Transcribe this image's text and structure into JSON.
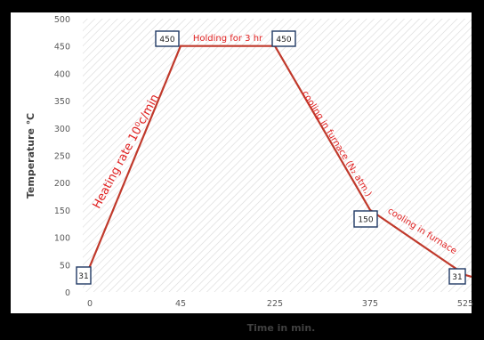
{
  "chart_data": {
    "type": "line",
    "title": "",
    "xlabel": "Time in min.",
    "ylabel": "Temperature ℃",
    "ylim": [
      0,
      500
    ],
    "y_ticks": [
      "0",
      "50",
      "100",
      "150",
      "200",
      "250",
      "300",
      "350",
      "400",
      "450",
      "500"
    ],
    "x_tick_labels": [
      "0",
      "45",
      "225",
      "375",
      "525"
    ],
    "grid": false,
    "background_pattern": "diagonal-hatch",
    "series": [
      {
        "color": "#c0392b",
        "points": [
          {
            "t": "0",
            "y": 31
          },
          {
            "t": "45",
            "y": 450
          },
          {
            "t": "225",
            "y": 450
          },
          {
            "t": "375",
            "y": 150
          },
          {
            "t": "525",
            "y": 31
          }
        ]
      }
    ],
    "point_labels": [
      "31",
      "450",
      "450",
      "150",
      "31"
    ],
    "annotations": [
      {
        "text": "Heating rate 10⁰c/min",
        "color": "#e02020"
      },
      {
        "text": "Holding for 3 hr",
        "color": "#e02020"
      },
      {
        "text": "cooling in furnace (N₂ atm.)",
        "color": "#e02020"
      },
      {
        "text": "cooling in furnace",
        "color": "#e02020"
      }
    ],
    "colors": {
      "frame": "#000000",
      "plot_background": "#ffffff",
      "hatch": "#d9d9d9",
      "line": "#c0392b",
      "label_box": "#1f3864",
      "axis_text": "#595959",
      "annotation": "#e02020"
    }
  }
}
